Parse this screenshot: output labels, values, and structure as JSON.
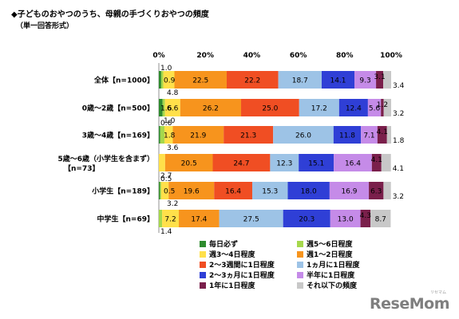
{
  "title": "◆子どものおやつのうち、母親の手づくりおやつの頻度",
  "subtitle": "（単一回答形式）",
  "watermark": {
    "brand": "ReseMom",
    "sub": "リセマム"
  },
  "chart_data": {
    "type": "bar",
    "orientation": "horizontal",
    "stacked": true,
    "percent": true,
    "xlim": [
      0,
      100
    ],
    "xticks": [
      "0%",
      "20%",
      "40%",
      "60%",
      "80%",
      "100%"
    ],
    "categories": [
      "全体【n=1000】",
      "0歳～2歳【n=500】",
      "3歳～4歳【n=169】",
      "5歳～6歳（小学生を含まず）【n=73】",
      "小学生【n=189】",
      "中学生【n=69】"
    ],
    "series": [
      {
        "name": "毎日必ず",
        "color": "#2e8b2e",
        "values": [
          1.0,
          1.6,
          0.6,
          0.0,
          0.5,
          0.0
        ]
      },
      {
        "name": "週5～6日程度",
        "color": "#a6d84c",
        "values": [
          0.9,
          1.0,
          1.8,
          0.0,
          0.5,
          1.4
        ]
      },
      {
        "name": "週3～4日程度",
        "color": "#ffe04a",
        "values": [
          4.8,
          6.6,
          3.6,
          2.7,
          3.2,
          7.2
        ]
      },
      {
        "name": "週1～2日程度",
        "color": "#f7941d",
        "values": [
          22.5,
          26.2,
          21.9,
          20.5,
          19.6,
          17.4
        ]
      },
      {
        "name": "2～3週間に1日程度",
        "color": "#f04e23",
        "values": [
          22.2,
          25.0,
          21.3,
          24.7,
          16.4,
          0.0
        ]
      },
      {
        "name": "1ヵ月に1日程度",
        "color": "#9dc3e6",
        "values": [
          18.7,
          17.2,
          26.0,
          12.3,
          15.3,
          27.5
        ]
      },
      {
        "name": "2～3ヵ月に1日程度",
        "color": "#2f3fd6",
        "values": [
          14.1,
          12.4,
          11.8,
          15.1,
          18.0,
          20.3
        ]
      },
      {
        "name": "半年に1日程度",
        "color": "#c58be8",
        "values": [
          9.3,
          5.6,
          7.1,
          16.4,
          16.9,
          13.0
        ]
      },
      {
        "name": "1年に1日程度",
        "color": "#7a1f4b",
        "values": [
          3.1,
          1.2,
          4.1,
          4.1,
          6.3,
          4.3
        ]
      },
      {
        "name": "それ以下の頻度",
        "color": "#c8c8c8",
        "values": [
          3.4,
          3.2,
          1.8,
          4.1,
          3.2,
          8.7
        ]
      }
    ]
  }
}
